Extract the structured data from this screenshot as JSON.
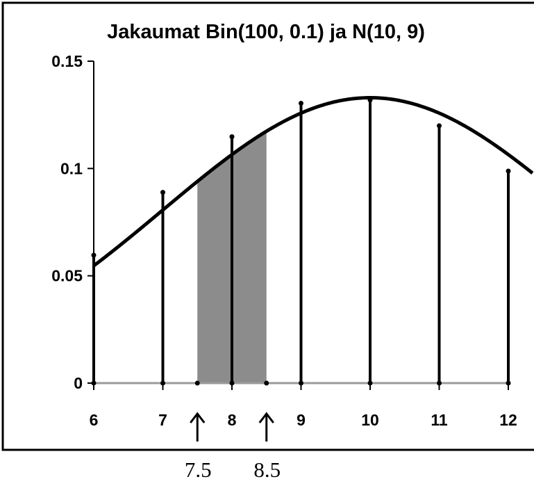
{
  "chart_data": {
    "type": "line",
    "title": "Jakaumat Bin(100, 0.1) ja N(10, 9)",
    "xlabel": "",
    "ylabel": "",
    "xlim": [
      6,
      12
    ],
    "ylim": [
      0,
      0.15
    ],
    "x_ticks": [
      "6",
      "7",
      "8",
      "9",
      "10",
      "11",
      "12"
    ],
    "y_ticks": [
      "0",
      "0.05",
      "0.1",
      "0.15"
    ],
    "series": [
      {
        "kind": "stems",
        "x": [
          6,
          7,
          8,
          9,
          10,
          11,
          12
        ],
        "y": [
          0.0596,
          0.0889,
          0.1148,
          0.1304,
          0.1319,
          0.1199,
          0.0988
        ]
      },
      {
        "kind": "curve",
        "mean": 10,
        "variance": 9
      }
    ],
    "shaded_interval": [
      7.5,
      8.5
    ],
    "markers": [
      "7.5",
      "8.5"
    ],
    "colors": {
      "curve": "#000000",
      "stem": "#000000",
      "shade": "#8c8c8c",
      "baseline": "#9a9a9a"
    },
    "grid": false,
    "legend": "none"
  }
}
